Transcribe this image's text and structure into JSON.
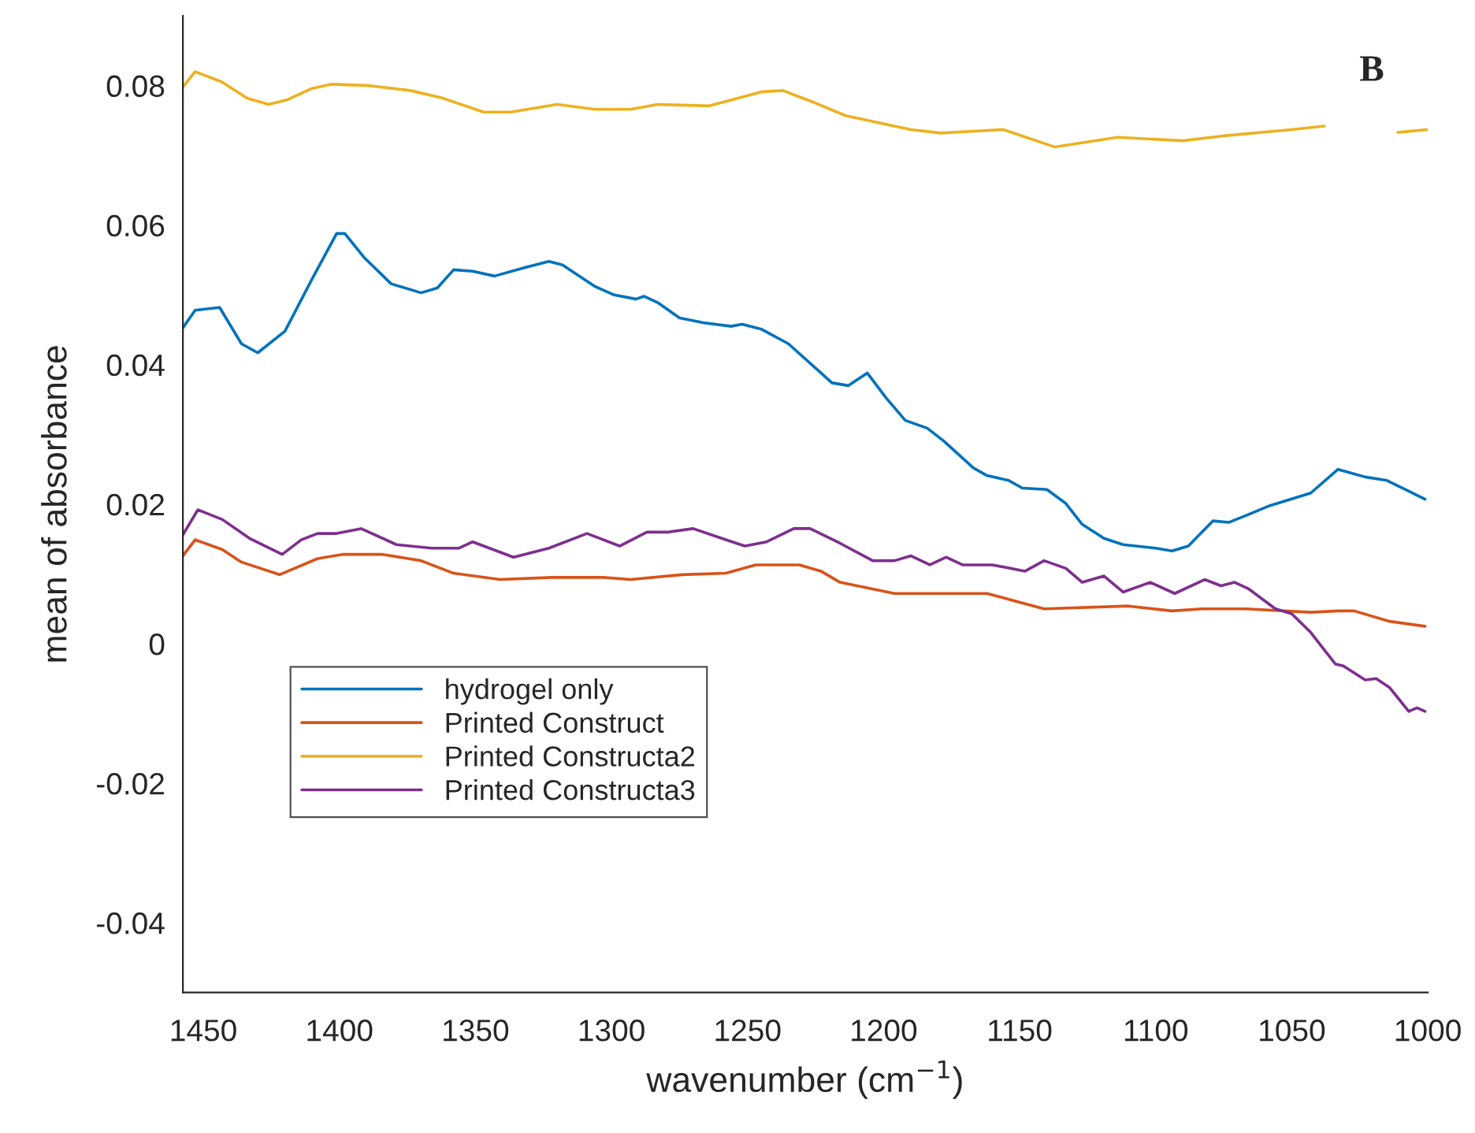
{
  "chart_data": {
    "type": "line",
    "xlabel": "wavenumber (cm$^{−1}$)",
    "ylabel": "mean of absorbance",
    "annotations": [
      "B"
    ],
    "xlim": [
      1457.5,
      1000
    ],
    "xticks": [
      1450,
      1400,
      1350,
      1300,
      1250,
      1200,
      1150,
      1100,
      1050,
      1000
    ],
    "ylim": [
      -0.05,
      0.09
    ],
    "yticks": [
      -0.04,
      -0.02,
      0,
      0.02,
      0.04,
      0.06,
      0.08
    ],
    "grid": false,
    "legend": "bottom left",
    "line_style": "solid",
    "marker": "none",
    "series": [
      {
        "name": "hydrogel only",
        "color": "#0072bd",
        "x": [
          1457.5,
          1453,
          1444,
          1436,
          1430,
          1420,
          1410,
          1401,
          1398,
          1391,
          1381,
          1370,
          1364,
          1358,
          1351,
          1343,
          1332,
          1323,
          1318,
          1306,
          1299,
          1291,
          1288,
          1283,
          1275,
          1266,
          1256,
          1252,
          1245,
          1235,
          1223,
          1219,
          1213,
          1206,
          1199,
          1192,
          1184,
          1178,
          1167,
          1162,
          1154,
          1149,
          1140,
          1133,
          1127,
          1119,
          1112,
          1100,
          1094,
          1088,
          1079,
          1073,
          1066,
          1058,
          1043,
          1033,
          1023,
          1015,
          1001
        ],
        "values": [
          0.0453,
          0.0478,
          0.0482,
          0.043,
          0.0417,
          0.0448,
          0.0523,
          0.0588,
          0.0588,
          0.0554,
          0.0516,
          0.0503,
          0.051,
          0.0536,
          0.0534,
          0.0527,
          0.0539,
          0.0548,
          0.0543,
          0.0512,
          0.05,
          0.0494,
          0.0498,
          0.0489,
          0.0467,
          0.046,
          0.0455,
          0.0458,
          0.0451,
          0.043,
          0.0388,
          0.0374,
          0.037,
          0.0388,
          0.0352,
          0.032,
          0.0309,
          0.0291,
          0.0252,
          0.0241,
          0.0234,
          0.0223,
          0.0221,
          0.0201,
          0.0171,
          0.0151,
          0.0142,
          0.0137,
          0.0133,
          0.014,
          0.0176,
          0.0174,
          0.0185,
          0.0198,
          0.0216,
          0.025,
          0.0239,
          0.0234,
          0.0207
        ]
      },
      {
        "name": "Printed Construct",
        "color": "#d95319",
        "x": [
          1457.5,
          1453,
          1443,
          1436,
          1422,
          1408,
          1399,
          1384,
          1370,
          1358,
          1341,
          1322,
          1303,
          1293,
          1274,
          1258,
          1247,
          1231,
          1223,
          1216,
          1196,
          1183,
          1162,
          1141,
          1110,
          1094,
          1083,
          1067,
          1043,
          1033,
          1027,
          1014,
          1001
        ],
        "values": [
          0.0126,
          0.0149,
          0.0135,
          0.0117,
          0.0099,
          0.0122,
          0.0128,
          0.0128,
          0.0119,
          0.0101,
          0.0092,
          0.0095,
          0.0095,
          0.0092,
          0.0099,
          0.0101,
          0.0113,
          0.0113,
          0.0104,
          0.0088,
          0.0072,
          0.0072,
          0.0072,
          0.005,
          0.0054,
          0.0047,
          0.005,
          0.005,
          0.0045,
          0.0047,
          0.0047,
          0.0032,
          0.0025
        ]
      },
      {
        "name": "Printed Constructa2",
        "color": "#edb120",
        "x": [
          1457.5,
          1453,
          1443,
          1434,
          1426,
          1419,
          1410,
          1403,
          1389,
          1374,
          1362,
          1347,
          1337,
          1320,
          1306,
          1293,
          1283,
          1264,
          1245,
          1237,
          1225,
          1214,
          1190,
          1179,
          1156,
          1137,
          1114,
          1090,
          1075,
          1050,
          1038,
          1025,
          1011,
          1000
        ],
        "values": [
          0.0798,
          0.082,
          0.0805,
          0.0782,
          0.0773,
          0.078,
          0.0796,
          0.0802,
          0.08,
          0.0793,
          0.0782,
          0.0762,
          0.0762,
          0.0773,
          0.0766,
          0.0766,
          0.0773,
          0.0771,
          0.0791,
          0.0793,
          0.0775,
          0.0757,
          0.0737,
          0.0732,
          0.0737,
          0.0712,
          0.0726,
          0.0721,
          0.0728,
          0.0737,
          0.0742,
          null,
          0.0733,
          0.0737
        ]
      },
      {
        "name": "Printed Constructa3",
        "color": "#7e2f8e",
        "x": [
          1457.5,
          1452,
          1443,
          1433,
          1421,
          1414,
          1408,
          1401,
          1392,
          1379,
          1366,
          1356,
          1351,
          1336,
          1323,
          1309,
          1297,
          1287,
          1279,
          1270,
          1258,
          1251,
          1243,
          1233,
          1227,
          1216,
          1204,
          1196,
          1190,
          1183,
          1177,
          1171,
          1160,
          1148,
          1141,
          1133,
          1127,
          1119,
          1112,
          1102,
          1093,
          1082,
          1076,
          1071,
          1066,
          1056,
          1050,
          1043,
          1034,
          1031,
          1023,
          1019,
          1014,
          1007,
          1004,
          1001
        ],
        "values": [
          0.0156,
          0.0192,
          0.0178,
          0.0151,
          0.0128,
          0.0149,
          0.0158,
          0.0158,
          0.0165,
          0.0142,
          0.0137,
          0.0137,
          0.0146,
          0.0124,
          0.0137,
          0.0158,
          0.014,
          0.016,
          0.016,
          0.0165,
          0.0149,
          0.014,
          0.0146,
          0.0165,
          0.0165,
          0.0144,
          0.0119,
          0.0119,
          0.0126,
          0.0113,
          0.0124,
          0.0113,
          0.0113,
          0.0104,
          0.0119,
          0.0108,
          0.0088,
          0.0097,
          0.0074,
          0.0088,
          0.0072,
          0.0092,
          0.0083,
          0.0088,
          0.0079,
          0.005,
          0.0043,
          0.0016,
          -0.0029,
          -0.0032,
          -0.0052,
          -0.005,
          -0.0063,
          -0.0097,
          -0.0092,
          -0.0097
        ]
      }
    ]
  }
}
